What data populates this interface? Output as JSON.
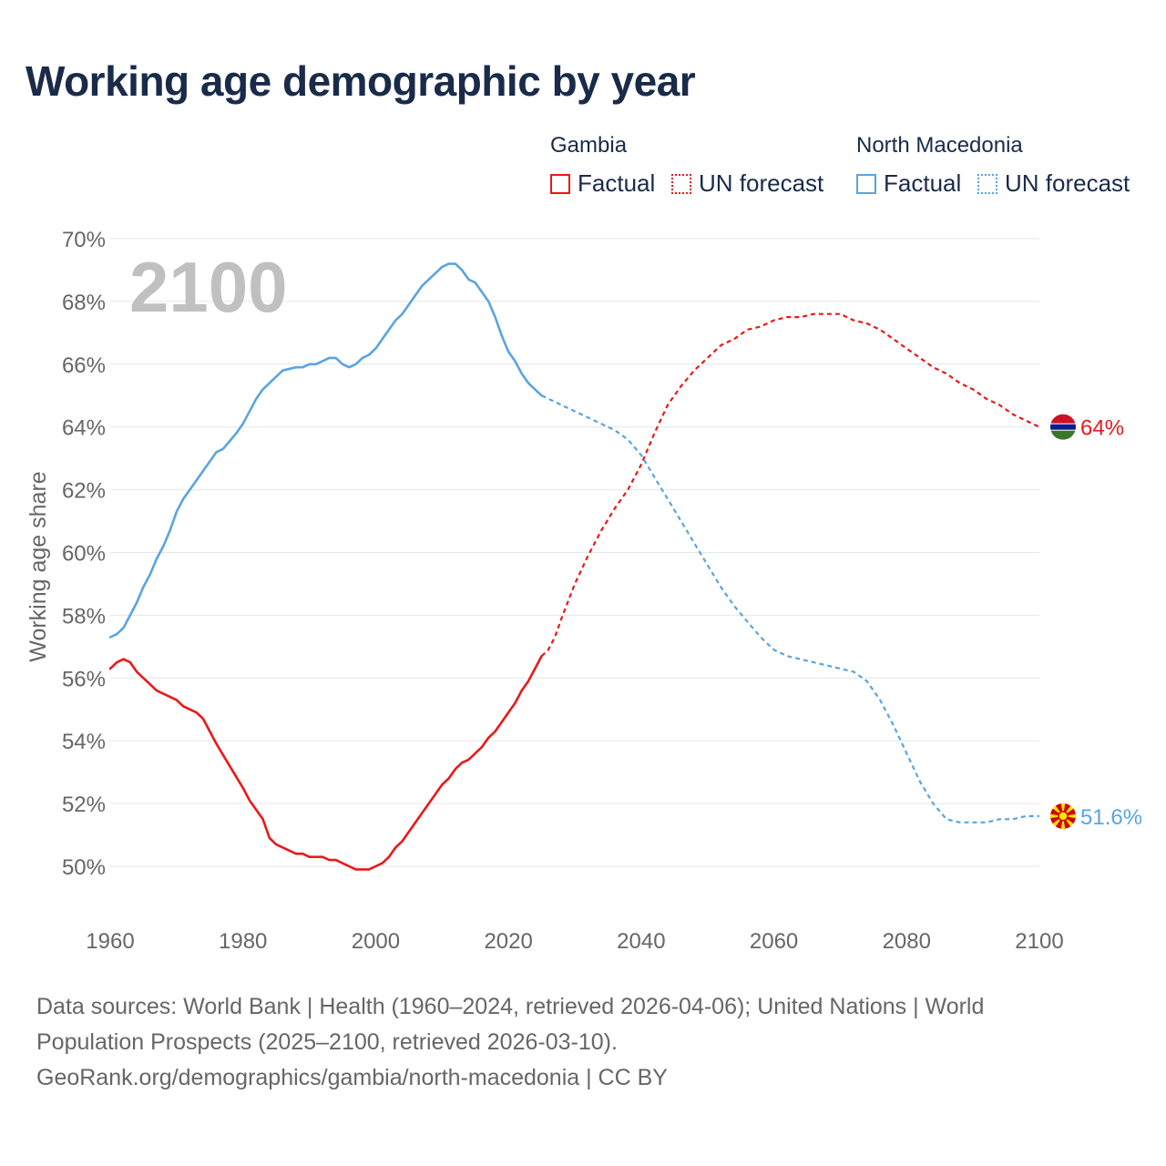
{
  "title": "Working age demographic by year",
  "year_watermark": "2100",
  "legend": {
    "gambia_title": "Gambia",
    "macedonia_title": "North Macedonia",
    "factual_label": "Factual",
    "forecast_label": "UN forecast"
  },
  "sources": {
    "line1": "Data sources: World Bank | Health (1960–2024, retrieved 2026-04-06); United Nations | World",
    "line2": "Population Prospects (2025–2100, retrieved 2026-03-10).",
    "line3": "GeoRank.org/demographics/gambia/north-macedonia | CC BY"
  },
  "colors": {
    "gambia": "#e8191a",
    "macedonia": "#5aa4e0",
    "text": "#1a2b4a",
    "grid": "#e6e6e6",
    "axis_text": "#666666"
  },
  "chart_data": {
    "type": "line",
    "title": "Working age demographic by year",
    "ylabel": "Working age share",
    "xlabel": "",
    "xlim": [
      1960,
      2100
    ],
    "ylim": [
      48.3,
      70
    ],
    "x_ticks": [
      "1960",
      "1980",
      "2000",
      "2020",
      "2040",
      "2060",
      "2080",
      "2100"
    ],
    "y_ticks": [
      "50%",
      "52%",
      "54%",
      "56%",
      "58%",
      "60%",
      "62%",
      "64%",
      "66%",
      "68%",
      "70%"
    ],
    "series": [
      {
        "name": "Gambia",
        "end_label": "64%",
        "factual": [
          [
            1960,
            56.3
          ],
          [
            1961,
            56.5
          ],
          [
            1962,
            56.6
          ],
          [
            1963,
            56.5
          ],
          [
            1964,
            56.2
          ],
          [
            1966,
            55.8
          ],
          [
            1967,
            55.6
          ],
          [
            1970,
            55.3
          ],
          [
            1971,
            55.1
          ],
          [
            1973,
            54.9
          ],
          [
            1974,
            54.7
          ],
          [
            1976,
            53.9
          ],
          [
            1978,
            53.2
          ],
          [
            1980,
            52.5
          ],
          [
            1981,
            52.1
          ],
          [
            1983,
            51.5
          ],
          [
            1984,
            50.9
          ],
          [
            1985,
            50.7
          ],
          [
            1987,
            50.5
          ],
          [
            1988,
            50.4
          ],
          [
            1989,
            50.4
          ],
          [
            1990,
            50.3
          ],
          [
            1992,
            50.3
          ],
          [
            1993,
            50.2
          ],
          [
            1994,
            50.2
          ],
          [
            1996,
            50.0
          ],
          [
            1997,
            49.9
          ],
          [
            1998,
            49.9
          ],
          [
            1999,
            49.9
          ],
          [
            2000,
            50.0
          ],
          [
            2001,
            50.1
          ],
          [
            2002,
            50.3
          ],
          [
            2003,
            50.6
          ],
          [
            2004,
            50.8
          ],
          [
            2006,
            51.4
          ],
          [
            2008,
            52.0
          ],
          [
            2010,
            52.6
          ],
          [
            2011,
            52.8
          ],
          [
            2012,
            53.1
          ],
          [
            2013,
            53.3
          ],
          [
            2014,
            53.4
          ],
          [
            2016,
            53.8
          ],
          [
            2017,
            54.1
          ],
          [
            2018,
            54.3
          ],
          [
            2020,
            54.9
          ],
          [
            2021,
            55.2
          ],
          [
            2022,
            55.6
          ],
          [
            2023,
            55.9
          ],
          [
            2024,
            56.3
          ],
          [
            2025,
            56.7
          ]
        ],
        "forecast": [
          [
            2025,
            56.7
          ],
          [
            2026,
            56.9
          ],
          [
            2027,
            57.3
          ],
          [
            2028,
            57.9
          ],
          [
            2030,
            59.0
          ],
          [
            2032,
            59.9
          ],
          [
            2034,
            60.7
          ],
          [
            2036,
            61.4
          ],
          [
            2038,
            62.0
          ],
          [
            2040,
            62.8
          ],
          [
            2042,
            63.8
          ],
          [
            2044,
            64.7
          ],
          [
            2046,
            65.3
          ],
          [
            2048,
            65.8
          ],
          [
            2050,
            66.2
          ],
          [
            2052,
            66.6
          ],
          [
            2054,
            66.8
          ],
          [
            2056,
            67.1
          ],
          [
            2058,
            67.2
          ],
          [
            2060,
            67.4
          ],
          [
            2062,
            67.5
          ],
          [
            2064,
            67.5
          ],
          [
            2066,
            67.6
          ],
          [
            2068,
            67.6
          ],
          [
            2070,
            67.6
          ],
          [
            2072,
            67.4
          ],
          [
            2074,
            67.3
          ],
          [
            2076,
            67.1
          ],
          [
            2078,
            66.8
          ],
          [
            2080,
            66.5
          ],
          [
            2082,
            66.2
          ],
          [
            2084,
            65.9
          ],
          [
            2086,
            65.7
          ],
          [
            2088,
            65.4
          ],
          [
            2090,
            65.2
          ],
          [
            2092,
            64.9
          ],
          [
            2094,
            64.7
          ],
          [
            2096,
            64.4
          ],
          [
            2098,
            64.2
          ],
          [
            2100,
            64.0
          ]
        ]
      },
      {
        "name": "North Macedonia",
        "end_label": "51.6%",
        "factual": [
          [
            1960,
            57.3
          ],
          [
            1961,
            57.4
          ],
          [
            1962,
            57.6
          ],
          [
            1963,
            58.0
          ],
          [
            1964,
            58.4
          ],
          [
            1965,
            58.9
          ],
          [
            1966,
            59.3
          ],
          [
            1967,
            59.8
          ],
          [
            1968,
            60.2
          ],
          [
            1969,
            60.7
          ],
          [
            1970,
            61.3
          ],
          [
            1971,
            61.7
          ],
          [
            1972,
            62.0
          ],
          [
            1974,
            62.6
          ],
          [
            1976,
            63.2
          ],
          [
            1977,
            63.3
          ],
          [
            1979,
            63.8
          ],
          [
            1980,
            64.1
          ],
          [
            1982,
            64.9
          ],
          [
            1983,
            65.2
          ],
          [
            1985,
            65.6
          ],
          [
            1986,
            65.8
          ],
          [
            1988,
            65.9
          ],
          [
            1989,
            65.9
          ],
          [
            1990,
            66.0
          ],
          [
            1991,
            66.0
          ],
          [
            1992,
            66.1
          ],
          [
            1993,
            66.2
          ],
          [
            1994,
            66.2
          ],
          [
            1995,
            66.0
          ],
          [
            1996,
            65.9
          ],
          [
            1997,
            66.0
          ],
          [
            1998,
            66.2
          ],
          [
            1999,
            66.3
          ],
          [
            2000,
            66.5
          ],
          [
            2001,
            66.8
          ],
          [
            2002,
            67.1
          ],
          [
            2003,
            67.4
          ],
          [
            2004,
            67.6
          ],
          [
            2005,
            67.9
          ],
          [
            2006,
            68.2
          ],
          [
            2007,
            68.5
          ],
          [
            2008,
            68.7
          ],
          [
            2009,
            68.9
          ],
          [
            2010,
            69.1
          ],
          [
            2011,
            69.2
          ],
          [
            2012,
            69.2
          ],
          [
            2013,
            69.0
          ],
          [
            2014,
            68.7
          ],
          [
            2015,
            68.6
          ],
          [
            2016,
            68.3
          ],
          [
            2017,
            68.0
          ],
          [
            2018,
            67.5
          ],
          [
            2019,
            66.9
          ],
          [
            2020,
            66.4
          ],
          [
            2021,
            66.1
          ],
          [
            2022,
            65.7
          ],
          [
            2023,
            65.4
          ],
          [
            2024,
            65.2
          ],
          [
            2025,
            65.0
          ]
        ],
        "forecast": [
          [
            2025,
            65.0
          ],
          [
            2026,
            64.9
          ],
          [
            2028,
            64.7
          ],
          [
            2030,
            64.5
          ],
          [
            2032,
            64.3
          ],
          [
            2034,
            64.1
          ],
          [
            2036,
            63.9
          ],
          [
            2038,
            63.6
          ],
          [
            2040,
            63.1
          ],
          [
            2042,
            62.4
          ],
          [
            2044,
            61.7
          ],
          [
            2046,
            61.0
          ],
          [
            2048,
            60.3
          ],
          [
            2050,
            59.6
          ],
          [
            2052,
            58.9
          ],
          [
            2054,
            58.3
          ],
          [
            2056,
            57.8
          ],
          [
            2058,
            57.3
          ],
          [
            2060,
            56.9
          ],
          [
            2062,
            56.7
          ],
          [
            2064,
            56.6
          ],
          [
            2066,
            56.5
          ],
          [
            2068,
            56.4
          ],
          [
            2070,
            56.3
          ],
          [
            2072,
            56.2
          ],
          [
            2074,
            55.9
          ],
          [
            2076,
            55.3
          ],
          [
            2078,
            54.5
          ],
          [
            2080,
            53.6
          ],
          [
            2082,
            52.7
          ],
          [
            2084,
            52.0
          ],
          [
            2086,
            51.5
          ],
          [
            2088,
            51.4
          ],
          [
            2090,
            51.4
          ],
          [
            2092,
            51.4
          ],
          [
            2094,
            51.5
          ],
          [
            2096,
            51.5
          ],
          [
            2098,
            51.6
          ],
          [
            2100,
            51.6
          ]
        ]
      }
    ]
  }
}
